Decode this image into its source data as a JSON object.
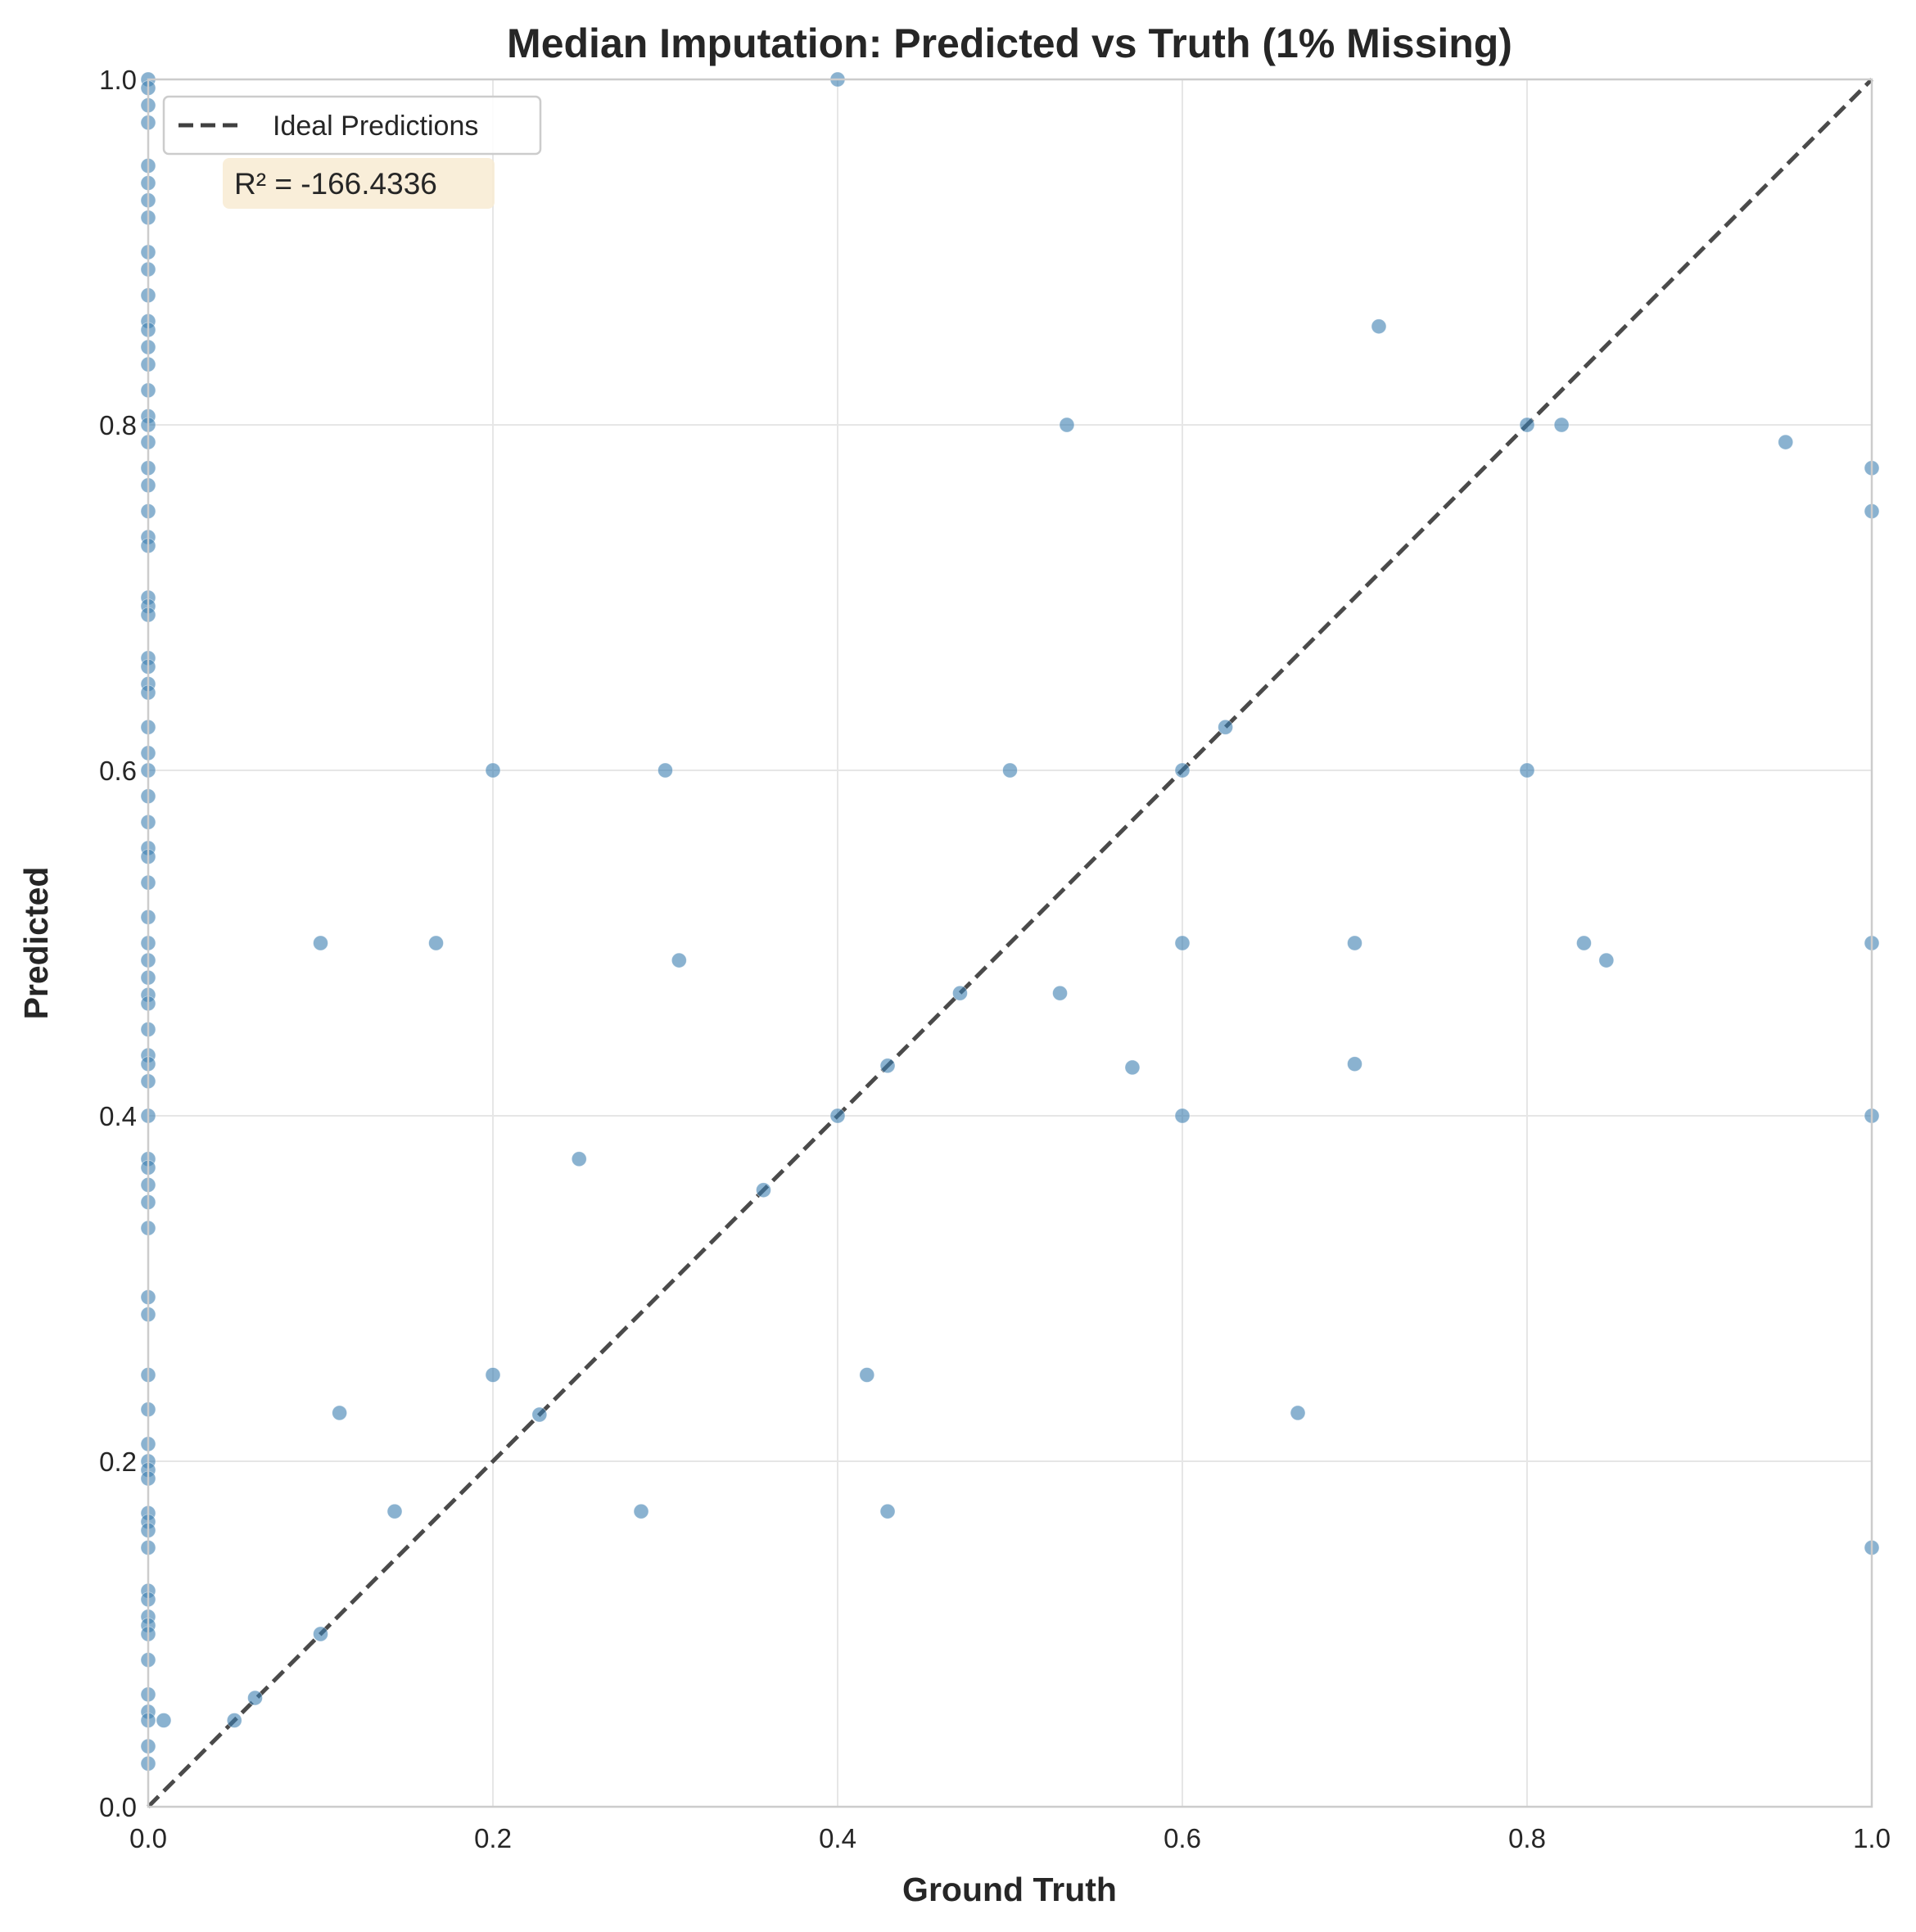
{
  "chart_data": {
    "type": "scatter",
    "title": "Median Imputation: Predicted vs Truth (1% Missing)",
    "xlabel": "Ground Truth",
    "ylabel": "Predicted",
    "xlim": [
      0,
      1
    ],
    "ylim": [
      0,
      1
    ],
    "xticks": [
      "0.0",
      "0.2",
      "0.4",
      "0.6",
      "0.8",
      "1.0"
    ],
    "yticks": [
      "0.0",
      "0.2",
      "0.4",
      "0.6",
      "0.8",
      "1.0"
    ],
    "grid": true,
    "legend": {
      "placement": "top-left",
      "entries": [
        {
          "label": "Ideal Predictions",
          "style": "dashed",
          "color": "#404040"
        }
      ]
    },
    "annotation": {
      "text": "R² = -166.4336",
      "placement": "top-left",
      "background": "#f8ebd2"
    },
    "point_color": "#3c7fb1",
    "ideal_line": {
      "from": [
        0,
        0
      ],
      "to": [
        1,
        1
      ]
    },
    "points": [
      [
        0.0,
        1.0
      ],
      [
        0.0,
        0.995
      ],
      [
        0.0,
        0.985
      ],
      [
        0.0,
        0.975
      ],
      [
        0.0,
        0.95
      ],
      [
        0.0,
        0.94
      ],
      [
        0.0,
        0.93
      ],
      [
        0.0,
        0.92
      ],
      [
        0.0,
        0.9
      ],
      [
        0.0,
        0.89
      ],
      [
        0.0,
        0.875
      ],
      [
        0.0,
        0.86
      ],
      [
        0.0,
        0.855
      ],
      [
        0.0,
        0.845
      ],
      [
        0.0,
        0.835
      ],
      [
        0.0,
        0.82
      ],
      [
        0.0,
        0.805
      ],
      [
        0.0,
        0.8
      ],
      [
        0.0,
        0.79
      ],
      [
        0.0,
        0.775
      ],
      [
        0.0,
        0.765
      ],
      [
        0.0,
        0.75
      ],
      [
        0.0,
        0.735
      ],
      [
        0.0,
        0.73
      ],
      [
        0.0,
        0.7
      ],
      [
        0.0,
        0.695
      ],
      [
        0.0,
        0.69
      ],
      [
        0.0,
        0.665
      ],
      [
        0.0,
        0.66
      ],
      [
        0.0,
        0.65
      ],
      [
        0.0,
        0.645
      ],
      [
        0.0,
        0.625
      ],
      [
        0.0,
        0.61
      ],
      [
        0.0,
        0.6
      ],
      [
        0.0,
        0.585
      ],
      [
        0.0,
        0.57
      ],
      [
        0.0,
        0.555
      ],
      [
        0.0,
        0.55
      ],
      [
        0.0,
        0.535
      ],
      [
        0.0,
        0.515
      ],
      [
        0.0,
        0.5
      ],
      [
        0.0,
        0.49
      ],
      [
        0.0,
        0.48
      ],
      [
        0.0,
        0.47
      ],
      [
        0.0,
        0.465
      ],
      [
        0.0,
        0.45
      ],
      [
        0.0,
        0.435
      ],
      [
        0.0,
        0.43
      ],
      [
        0.0,
        0.42
      ],
      [
        0.0,
        0.4
      ],
      [
        0.0,
        0.375
      ],
      [
        0.0,
        0.37
      ],
      [
        0.0,
        0.36
      ],
      [
        0.0,
        0.35
      ],
      [
        0.0,
        0.335
      ],
      [
        0.0,
        0.295
      ],
      [
        0.0,
        0.285
      ],
      [
        0.0,
        0.25
      ],
      [
        0.0,
        0.23
      ],
      [
        0.0,
        0.21
      ],
      [
        0.0,
        0.2
      ],
      [
        0.0,
        0.195
      ],
      [
        0.0,
        0.19
      ],
      [
        0.0,
        0.17
      ],
      [
        0.0,
        0.165
      ],
      [
        0.0,
        0.16
      ],
      [
        0.0,
        0.15
      ],
      [
        0.0,
        0.125
      ],
      [
        0.0,
        0.12
      ],
      [
        0.0,
        0.11
      ],
      [
        0.0,
        0.105
      ],
      [
        0.0,
        0.1
      ],
      [
        0.0,
        0.085
      ],
      [
        0.0,
        0.065
      ],
      [
        0.0,
        0.055
      ],
      [
        0.0,
        0.05
      ],
      [
        0.0,
        0.035
      ],
      [
        0.0,
        0.025
      ],
      [
        0.009,
        0.05
      ],
      [
        0.05,
        0.05
      ],
      [
        0.062,
        0.063
      ],
      [
        0.1,
        0.1
      ],
      [
        0.1,
        0.5
      ],
      [
        0.111,
        0.228
      ],
      [
        0.143,
        0.171
      ],
      [
        0.167,
        0.5
      ],
      [
        0.2,
        0.6
      ],
      [
        0.2,
        0.25
      ],
      [
        0.227,
        0.227
      ],
      [
        0.25,
        0.375
      ],
      [
        0.286,
        0.171
      ],
      [
        0.3,
        0.6
      ],
      [
        0.308,
        0.49
      ],
      [
        0.357,
        0.357
      ],
      [
        0.4,
        1.0
      ],
      [
        0.4,
        0.4
      ],
      [
        0.417,
        0.25
      ],
      [
        0.429,
        0.429
      ],
      [
        0.429,
        0.171
      ],
      [
        0.471,
        0.471
      ],
      [
        0.5,
        0.6
      ],
      [
        0.529,
        0.471
      ],
      [
        0.533,
        0.8
      ],
      [
        0.571,
        0.428
      ],
      [
        0.6,
        0.6
      ],
      [
        0.6,
        0.5
      ],
      [
        0.6,
        0.4
      ],
      [
        0.625,
        0.625
      ],
      [
        0.667,
        0.228
      ],
      [
        0.7,
        0.5
      ],
      [
        0.7,
        0.43
      ],
      [
        0.714,
        0.857
      ],
      [
        0.8,
        0.8
      ],
      [
        0.8,
        0.6
      ],
      [
        0.82,
        0.8
      ],
      [
        0.833,
        0.5
      ],
      [
        0.846,
        0.49
      ],
      [
        0.95,
        0.79
      ],
      [
        1.0,
        0.775
      ],
      [
        1.0,
        0.75
      ],
      [
        1.0,
        0.5
      ],
      [
        1.0,
        0.4
      ],
      [
        1.0,
        0.15
      ]
    ]
  }
}
